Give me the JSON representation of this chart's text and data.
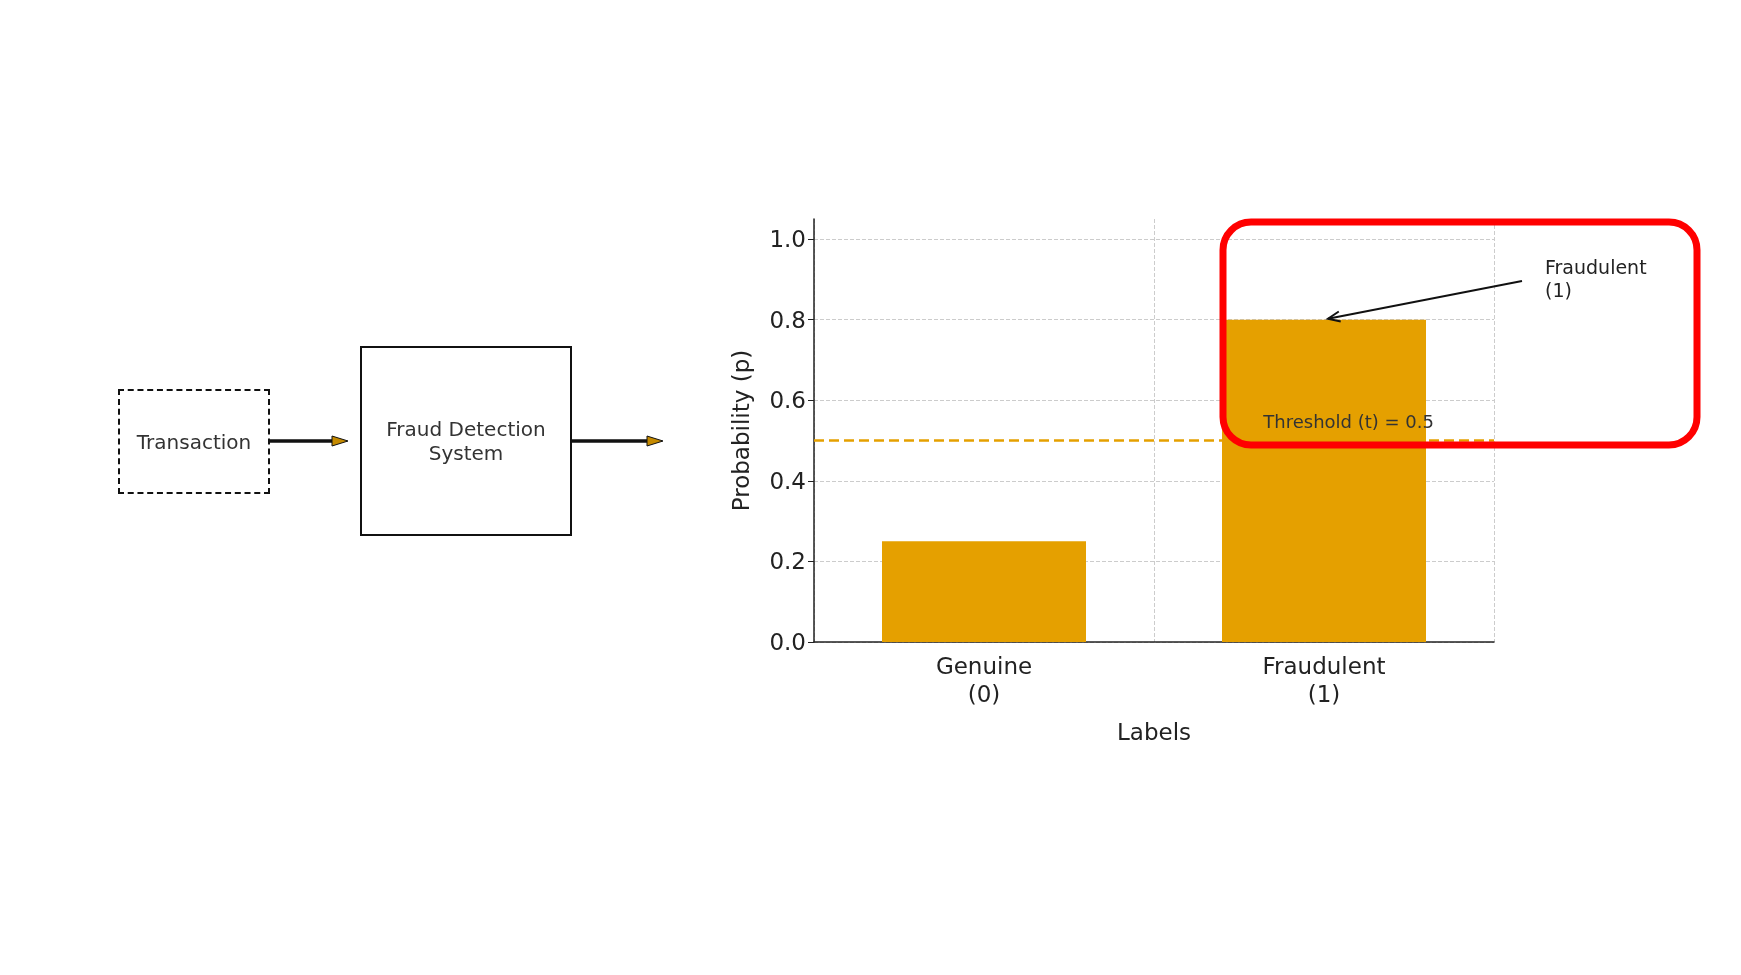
{
  "chart_data": {
    "type": "bar",
    "xlabel": "Labels",
    "ylabel": "Probability (p)",
    "categories": [
      "Genuine\n(0)",
      "Fraudulent\n(1)"
    ],
    "values": [
      0.25,
      0.8
    ],
    "color": "#e5a000",
    "ylim": [
      0,
      1.05
    ],
    "yticks": [
      {
        "value": 0,
        "label": "0.0"
      },
      0.2,
      0.4,
      0.6,
      0.8,
      {
        "value": 1,
        "label": "1.0"
      }
    ],
    "grid": true,
    "ref_lines": [
      {
        "axis": "y",
        "value": 0.5,
        "label": "Threshold (t) = 0.5",
        "color": "#e5a000",
        "line_style": "dashed"
      }
    ],
    "annotations": [
      {
        "text": "Fraudulent\n(1)",
        "x": "Fraudulent\n(1)",
        "y": 0.8
      },
      "Transaction",
      "Fraud Detection System"
    ]
  }
}
